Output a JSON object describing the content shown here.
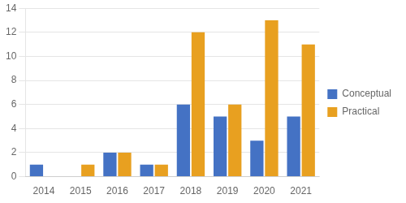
{
  "chart_data": {
    "type": "bar",
    "categories": [
      "2014",
      "2015",
      "2016",
      "2017",
      "2018",
      "2019",
      "2020",
      "2021"
    ],
    "series": [
      {
        "name": "Conceptual",
        "color": "#4472C4",
        "values": [
          1,
          0,
          2,
          1,
          6,
          5,
          3,
          5
        ]
      },
      {
        "name": "Practical",
        "color": "#E8A020",
        "values": [
          0,
          1,
          2,
          1,
          12,
          6,
          13,
          11
        ]
      }
    ],
    "ylim": [
      0,
      14
    ],
    "yticks": [
      0,
      2,
      4,
      6,
      8,
      10,
      12,
      14
    ],
    "grid": true,
    "legend": "right"
  }
}
